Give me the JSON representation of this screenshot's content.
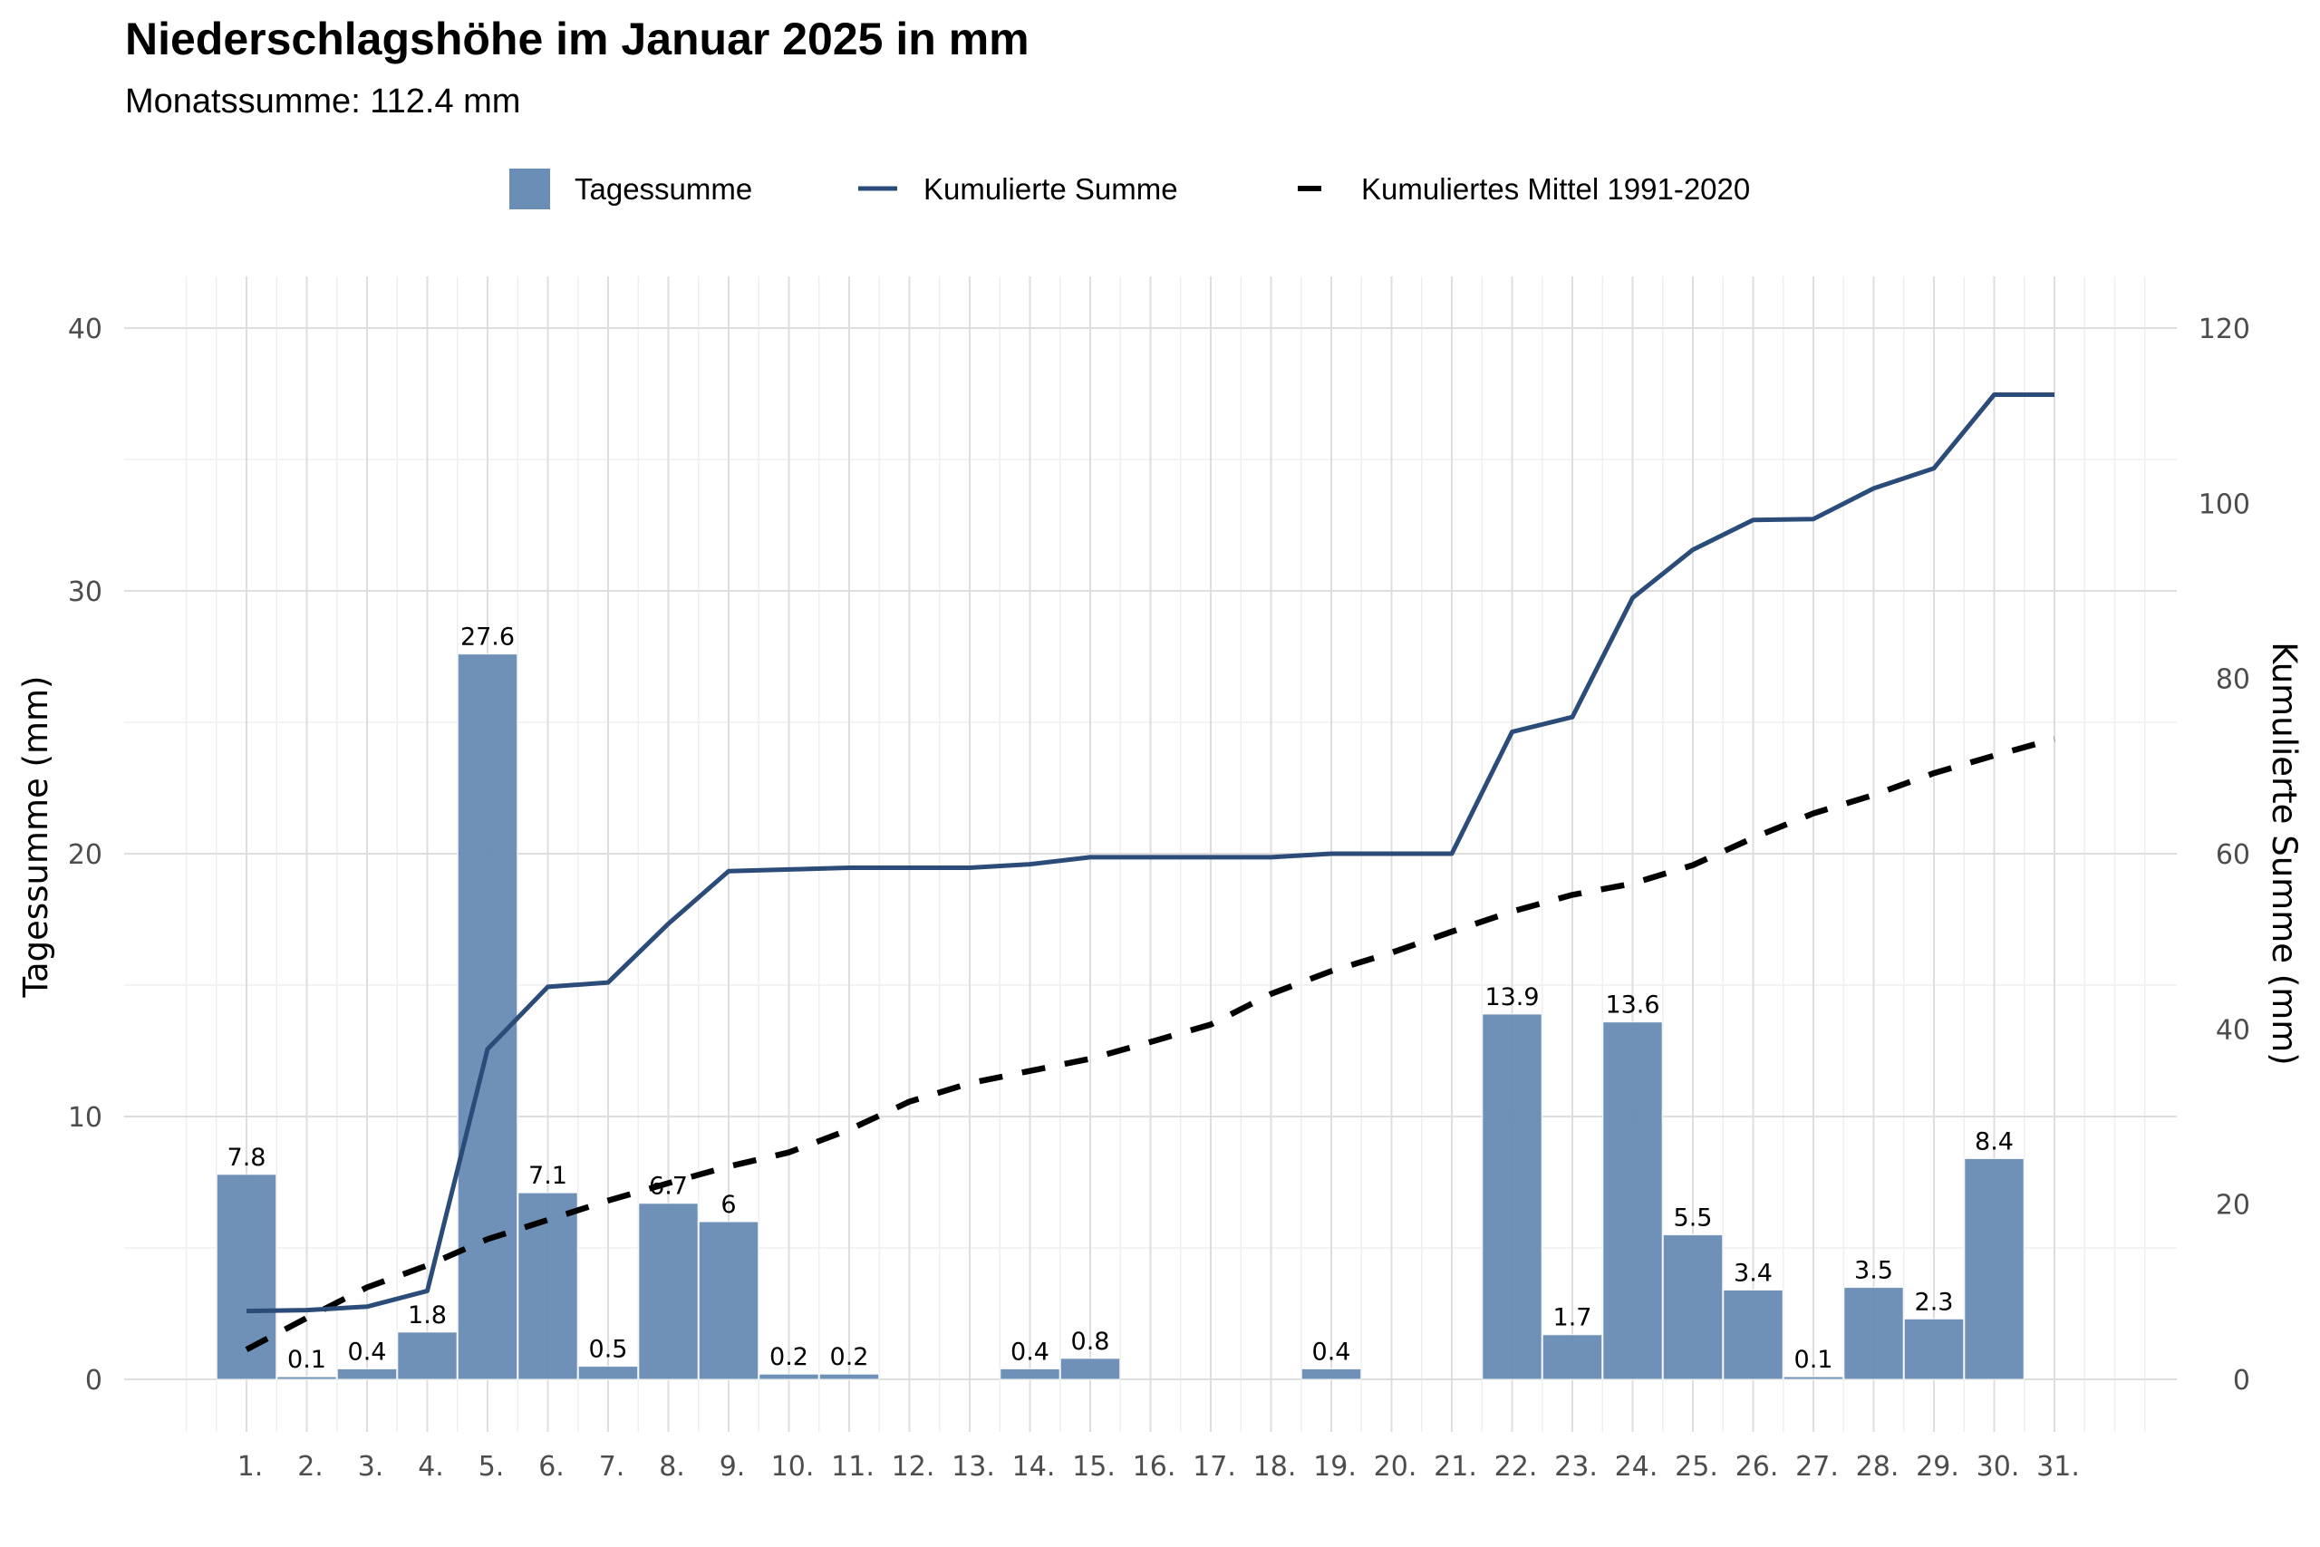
{
  "chart_data": {
    "type": "bar",
    "title": "Niederschlagshöhe im Januar 2025 in mm",
    "subtitle": "Monatssumme: 112.4 mm",
    "xlabel": "",
    "ylabel": "Tagessumme (mm)",
    "ylabel_right": "Kumulierte Summe (mm)",
    "ylim": [
      0,
      40
    ],
    "ylim_right": [
      0,
      120
    ],
    "yticks": [
      "0",
      "10",
      "20",
      "30",
      "40"
    ],
    "yticks_right": [
      "0",
      "20",
      "40",
      "60",
      "80",
      "100",
      "120"
    ],
    "grid": true,
    "legend_position": "top",
    "categories": [
      "1.",
      "2.",
      "3.",
      "4.",
      "5.",
      "6.",
      "7.",
      "8.",
      "9.",
      "10.",
      "11.",
      "12.",
      "13.",
      "14.",
      "15.",
      "16.",
      "17.",
      "18.",
      "19.",
      "20.",
      "21.",
      "22.",
      "23.",
      "24.",
      "25.",
      "26.",
      "27.",
      "28.",
      "29.",
      "30.",
      "31."
    ],
    "series": [
      {
        "name": "Tagessumme",
        "type": "bar",
        "axis": "left",
        "color": "#6a8db5",
        "values": [
          7.8,
          0.1,
          0.4,
          1.8,
          27.6,
          7.1,
          0.5,
          6.7,
          6,
          0.2,
          0.2,
          0,
          0,
          0.4,
          0.8,
          0,
          0,
          0,
          0.4,
          0,
          0,
          13.9,
          1.7,
          13.6,
          5.5,
          3.4,
          0.1,
          3.5,
          2.3,
          8.4,
          0
        ],
        "labels": [
          "7.8",
          "0.1",
          "0.4",
          "1.8",
          "27.6",
          "7.1",
          "0.5",
          "6.7",
          "6",
          "0.2",
          "0.2",
          null,
          null,
          "0.4",
          "0.8",
          null,
          null,
          null,
          "0.4",
          null,
          null,
          "13.9",
          "1.7",
          "13.6",
          "5.5",
          "3.4",
          "0.1",
          "3.5",
          "2.3",
          "8.4",
          null
        ]
      },
      {
        "name": "Kumulierte Summe",
        "type": "line",
        "axis": "right",
        "color": "#2b4c78",
        "values": [
          7.8,
          7.9,
          8.3,
          10.1,
          37.7,
          44.8,
          45.3,
          52.0,
          58.0,
          58.2,
          58.4,
          58.4,
          58.4,
          58.8,
          59.6,
          59.6,
          59.6,
          59.6,
          60.0,
          60.0,
          60.0,
          73.9,
          75.6,
          89.2,
          94.7,
          98.1,
          98.2,
          101.7,
          104.0,
          112.4,
          112.4
        ]
      },
      {
        "name": "Kumuliertes Mittel 1991-2020",
        "type": "line",
        "style": "dashed",
        "axis": "right",
        "color": "#000000",
        "values": [
          3.4,
          7.0,
          10.5,
          13.0,
          16.0,
          18.2,
          20.4,
          22.4,
          24.3,
          25.9,
          28.5,
          31.7,
          33.8,
          35.2,
          36.6,
          38.5,
          40.5,
          44.0,
          46.6,
          48.7,
          51.1,
          53.4,
          55.3,
          56.6,
          58.7,
          61.8,
          64.6,
          66.7,
          69.2,
          71.2,
          73.1
        ]
      }
    ]
  }
}
